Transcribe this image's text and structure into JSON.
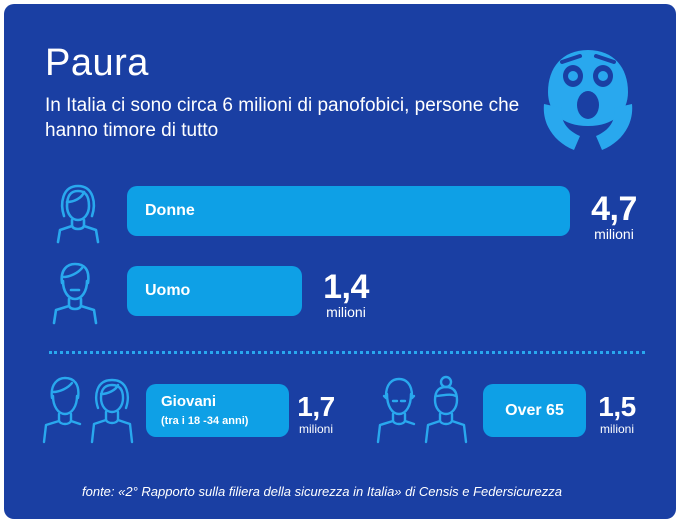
{
  "title": "Paura",
  "subtitle": "In Italia ci sono circa 6 milioni di panofobici, persone che hanno timore di tutto",
  "icons": {
    "header": "fearful-face-icon",
    "donne": "woman-icon",
    "uomo": "man-icon",
    "giovani": "young-people-icon",
    "over65": "elderly-people-icon"
  },
  "colors": {
    "background": "#1a3fa3",
    "bar": "#0ea0e6",
    "icon": "#29a8ee",
    "text": "#ffffff"
  },
  "chart_data": {
    "type": "bar",
    "categories": [
      "Donne",
      "Uomo"
    ],
    "values": [
      4.7,
      1.4
    ],
    "value_labels": [
      "4,7",
      "1,4"
    ],
    "unit": "milioni",
    "extra_categories": [
      {
        "label": "Giovani",
        "sublabel": "(tra i 18 -34 anni)",
        "value": 1.7,
        "value_label": "1,7"
      },
      {
        "label": "Over 65",
        "value": 1.5,
        "value_label": "1,5"
      }
    ]
  },
  "source": "fonte: «2° Rapporto sulla filiera della sicurezza in Italia» di Censis e Federsicurezza"
}
